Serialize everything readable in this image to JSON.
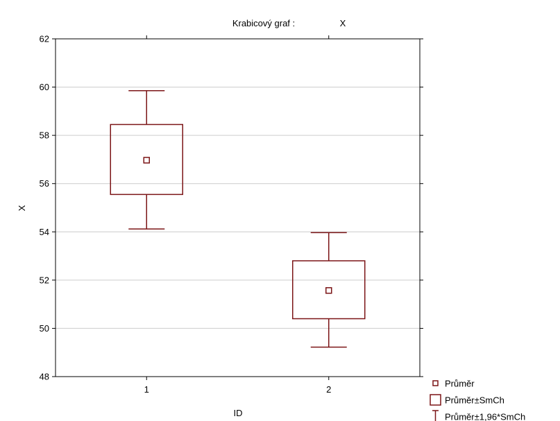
{
  "chart_data": {
    "type": "box",
    "title": "Krabicový  graf :",
    "title_variable": "X",
    "xlabel": "ID",
    "ylabel": "X",
    "ylim": [
      48,
      62
    ],
    "yticks": [
      48,
      50,
      52,
      54,
      56,
      58,
      60,
      62
    ],
    "categories": [
      "1",
      "2"
    ],
    "boxes": [
      {
        "category": "1",
        "mean": 56.97,
        "box_low": 55.55,
        "box_high": 58.45,
        "whisker_low": 54.12,
        "whisker_high": 59.85
      },
      {
        "category": "2",
        "mean": 51.57,
        "box_low": 50.4,
        "box_high": 52.8,
        "whisker_low": 49.22,
        "whisker_high": 53.97
      }
    ],
    "legend": {
      "position": "bottom-right",
      "items": [
        {
          "symbol": "mean",
          "label": "Průměr"
        },
        {
          "symbol": "box",
          "label": "Průměr±SmCh"
        },
        {
          "symbol": "whisker",
          "label": "Průměr±1,96*SmCh"
        }
      ]
    },
    "grid": true,
    "colors": {
      "series": "#7b1416",
      "grid": "#cccccc",
      "axis": "#000000",
      "background": "#ffffff"
    }
  }
}
